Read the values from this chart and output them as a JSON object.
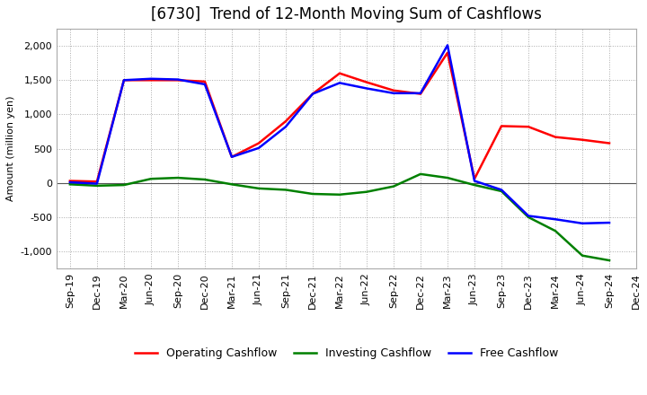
{
  "title": "[6730]  Trend of 12-Month Moving Sum of Cashflows",
  "ylabel": "Amount (million yen)",
  "x_labels": [
    "Sep-19",
    "Dec-19",
    "Mar-20",
    "Jun-20",
    "Sep-20",
    "Dec-20",
    "Mar-21",
    "Jun-21",
    "Sep-21",
    "Dec-21",
    "Mar-22",
    "Jun-22",
    "Sep-22",
    "Dec-22",
    "Mar-23",
    "Jun-23",
    "Sep-23",
    "Dec-23",
    "Mar-24",
    "Jun-24",
    "Sep-24",
    "Dec-24"
  ],
  "operating": [
    30,
    20,
    1500,
    1500,
    1500,
    1480,
    380,
    580,
    900,
    1300,
    1600,
    1470,
    1350,
    1300,
    1900,
    60,
    830,
    820,
    670,
    630,
    580,
    null
  ],
  "investing": [
    -20,
    -40,
    -30,
    60,
    75,
    50,
    -20,
    -80,
    -100,
    -160,
    -170,
    -130,
    -50,
    130,
    75,
    -30,
    -120,
    -500,
    -700,
    -1060,
    -1130,
    null
  ],
  "free": [
    10,
    -10,
    1500,
    1520,
    1510,
    1440,
    380,
    510,
    820,
    1300,
    1460,
    1380,
    1310,
    1310,
    2010,
    30,
    -100,
    -480,
    -530,
    -590,
    -580,
    null
  ],
  "operating_color": "#FF0000",
  "investing_color": "#008000",
  "free_color": "#0000FF",
  "ylim": [
    -1250,
    2250
  ],
  "yticks": [
    -1000,
    -500,
    0,
    500,
    1000,
    1500,
    2000
  ],
  "background_color": "#FFFFFF",
  "plot_bg_color": "#FFFFFF",
  "grid_color": "#AAAAAA",
  "title_fontsize": 12,
  "axis_fontsize": 8,
  "legend_fontsize": 9,
  "line_width": 1.8
}
